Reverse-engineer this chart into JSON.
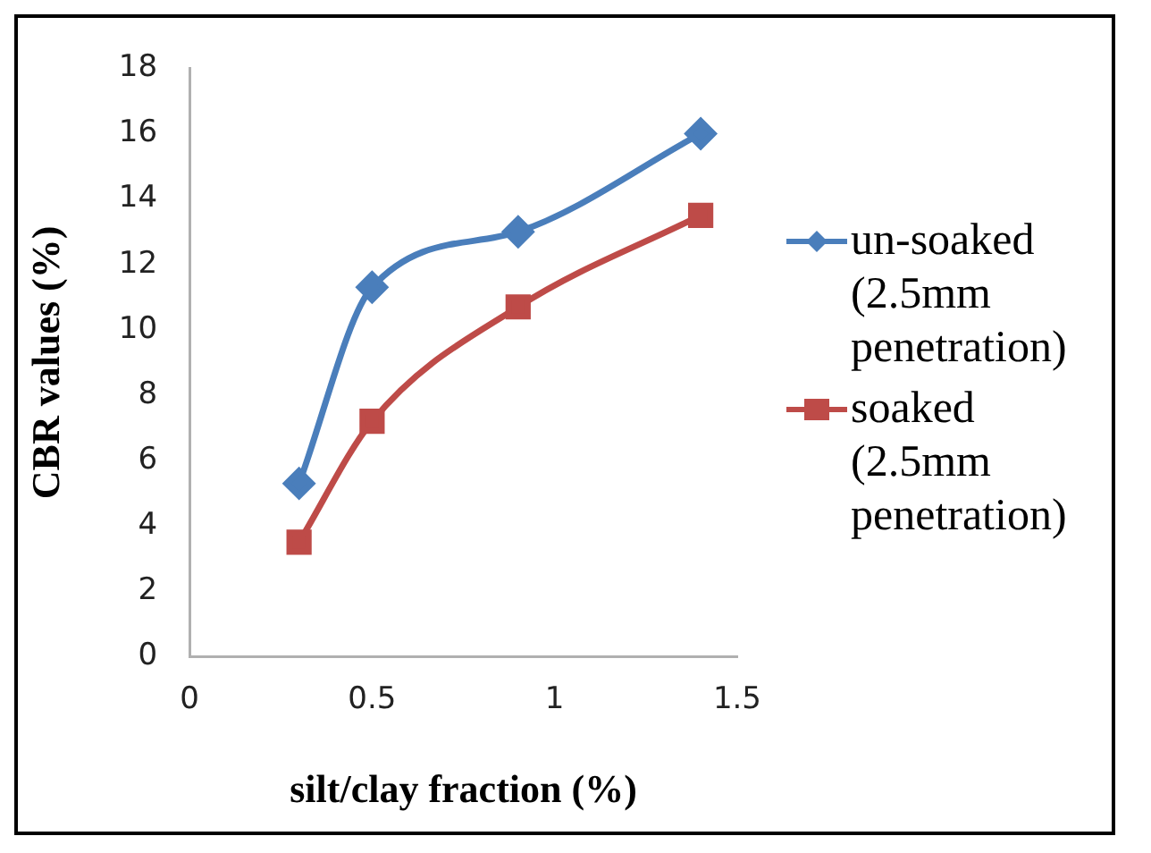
{
  "chart_data": {
    "type": "line",
    "xlabel": "silt/clay fraction (%)",
    "ylabel": "CBR values (%)",
    "x": [
      0.3,
      0.5,
      0.9,
      1.4
    ],
    "series": [
      {
        "name": "un-soaked (2.5mm penetration)",
        "color": "#4a7ebb",
        "marker": "diamond",
        "values": [
          5.3,
          11.3,
          13,
          16
        ]
      },
      {
        "name": "soaked (2.5mm penetration)",
        "color": "#be4b48",
        "marker": "square",
        "values": [
          3.5,
          7.2,
          10.7,
          13.5
        ]
      }
    ],
    "xlim": [
      0,
      1.5
    ],
    "xticks": [
      0,
      0.5,
      1,
      1.5
    ],
    "ylim": [
      0,
      18
    ],
    "yticks": [
      0,
      2,
      4,
      6,
      8,
      10,
      12,
      14,
      16,
      18
    ],
    "grid": false,
    "legend": "right"
  }
}
